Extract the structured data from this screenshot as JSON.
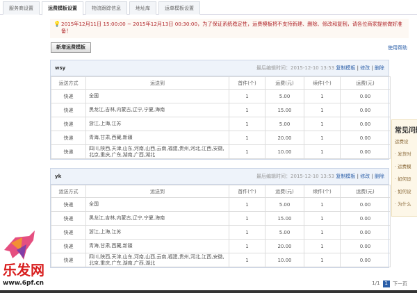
{
  "tabs": [
    "服务商设置",
    "运费模板设置",
    "物流跟踪信息",
    "地址库",
    "运单模板设置"
  ],
  "notice": "2015年12月11日 15:00:00 ~ 2015年12月13日 00:30:00，为了保证系统稳定性，运费模板将不支持新建、删除、修改和复制，请各位商家提前做好准备！",
  "new_button": "新增运费模板",
  "help_link": "使用帮助",
  "columns": [
    "运送方式",
    "运送到",
    "首件(个)",
    "运费(元)",
    "续件(个)",
    "运费(元)"
  ],
  "templates": [
    {
      "name": "wsy",
      "meta": "最后编辑时间：2015-12-10 13:53",
      "copy": "复制模板",
      "edit": "修改",
      "delete": "删除",
      "rows": [
        [
          "快递",
          "全国",
          "1",
          "5.00",
          "1",
          "0.00"
        ],
        [
          "快递",
          "黑龙江,吉林,内蒙古,辽宁,宁夏,海南",
          "1",
          "15.00",
          "1",
          "0.00"
        ],
        [
          "快递",
          "浙江,上海,江苏",
          "1",
          "5.00",
          "1",
          "0.00"
        ],
        [
          "快递",
          "青海,甘肃,西藏,新疆",
          "1",
          "20.00",
          "1",
          "0.00"
        ],
        [
          "快递",
          "四川,陕西,天津,山东,河南,山西,云南,福建,贵州,河北,江西,安徽,北京,重庆,广东,湖南,广西,湖北",
          "1",
          "10.00",
          "1",
          "0.00"
        ]
      ]
    },
    {
      "name": "yk",
      "meta": "最后编辑时间：2015-12-10 13:53",
      "copy": "复制模板",
      "edit": "修改",
      "delete": "删除",
      "rows": [
        [
          "快递",
          "全国",
          "1",
          "5.00",
          "1",
          "0.00"
        ],
        [
          "快递",
          "黑龙江,吉林,内蒙古,辽宁,宁夏,海南",
          "1",
          "15.00",
          "1",
          "0.00"
        ],
        [
          "快递",
          "浙江,上海,江苏",
          "1",
          "5.00",
          "1",
          "0.00"
        ],
        [
          "快递",
          "青海,甘肃,西藏,新疆",
          "1",
          "20.00",
          "1",
          "0.00"
        ],
        [
          "快递",
          "四川,陕西,天津,山东,河南,山西,云南,福建,贵州,河北,江西,安徽,北京,重庆,广东,湖南,广西,湖北",
          "1",
          "10.00",
          "1",
          "0.00"
        ]
      ]
    }
  ],
  "faq": {
    "title": "常见问题",
    "items": [
      "运费设",
      "· 发货时",
      "· 运费模",
      "· 如何设",
      "· 如何设",
      "· 为什么"
    ]
  },
  "pager": {
    "info": "1/1",
    "current": "1",
    "next": "下一页"
  },
  "watermark": {
    "text": "乐发网",
    "url": "www.6pf.cn"
  }
}
